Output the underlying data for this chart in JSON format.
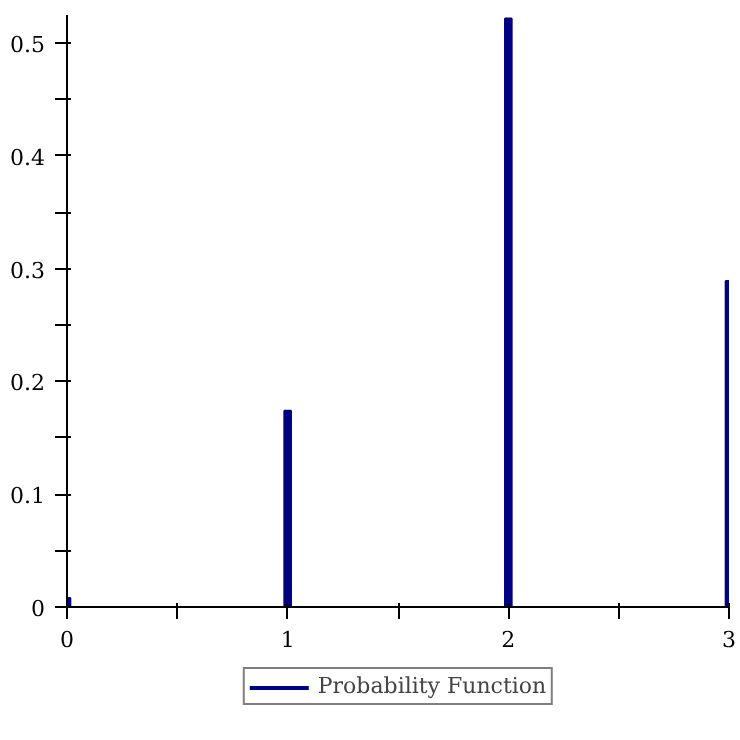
{
  "chart_data": {
    "type": "bar",
    "x": [
      0,
      1,
      2,
      3
    ],
    "series": [
      {
        "name": "Probability Function",
        "color": "#000080",
        "values": [
          0.008,
          0.174,
          0.522,
          0.289
        ]
      }
    ],
    "xlim": [
      0,
      3
    ],
    "ylim": [
      0,
      0.525
    ],
    "xticks": [
      0,
      {
        "value": 0.5,
        "label": null
      },
      1,
      {
        "value": 1.5,
        "label": null
      },
      2,
      {
        "value": 2.5,
        "label": null
      },
      3
    ],
    "yticks": [
      0,
      {
        "value": 0.05,
        "label": null
      },
      0.1,
      {
        "value": 0.15,
        "label": null
      },
      0.2,
      {
        "value": 0.25,
        "label": null
      },
      0.3,
      {
        "value": 0.35,
        "label": null
      },
      0.4,
      {
        "value": 0.45,
        "label": null
      },
      0.5
    ],
    "grid": false,
    "legend": "bottom"
  }
}
